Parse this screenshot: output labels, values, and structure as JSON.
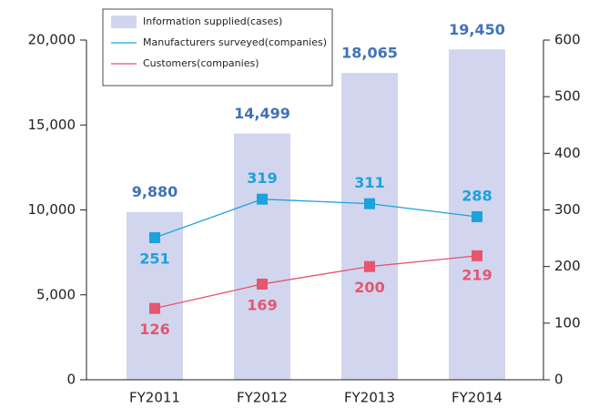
{
  "chart_data": {
    "type": "bar",
    "categories": [
      "FY2011",
      "FY2012",
      "FY2013",
      "FY2014"
    ],
    "series": [
      {
        "name": "Information supplied(cases)",
        "type": "bar",
        "color": "#d2d5ee",
        "label_color": "#3f73b8",
        "values": [
          9880,
          14499,
          18065,
          19450
        ],
        "value_labels": [
          "9,880",
          "14,499",
          "18,065",
          "19,450"
        ]
      },
      {
        "name": "Manufacturers surveyed(companies)",
        "type": "line",
        "axis": "y2",
        "color": "#1aa3dc",
        "values": [
          251,
          319,
          311,
          288
        ]
      },
      {
        "name": "Customers(companies)",
        "type": "line",
        "axis": "y2",
        "color": "#e5566f",
        "values": [
          126,
          169,
          200,
          219
        ]
      }
    ],
    "ylim": [
      0,
      20000
    ],
    "yticks": [
      {
        "value": 0,
        "label": "0"
      },
      {
        "value": 5000,
        "label": "5,000"
      },
      {
        "value": 10000,
        "label": "10,000"
      },
      {
        "value": 15000,
        "label": "15,000"
      },
      {
        "value": 20000,
        "label": "20,000"
      }
    ],
    "y2lim": [
      0,
      600
    ],
    "y2ticks": [
      0,
      100,
      200,
      300,
      400,
      500,
      600
    ],
    "legend": "top-left"
  }
}
